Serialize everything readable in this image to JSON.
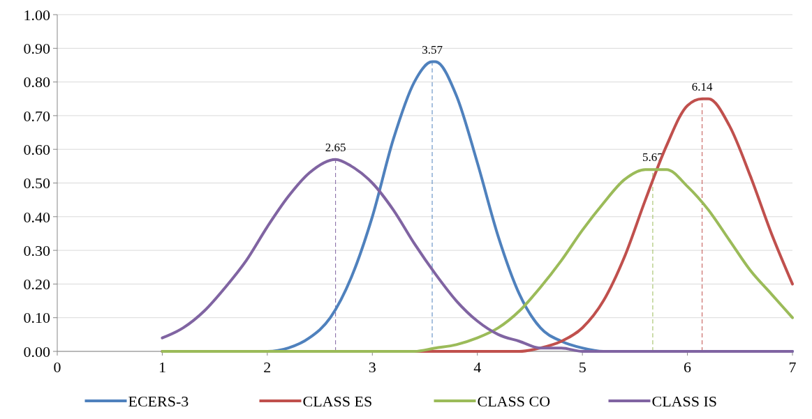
{
  "chart_data": {
    "type": "line",
    "xlim": [
      0,
      7
    ],
    "xticks": [
      0,
      1,
      2,
      3,
      4,
      5,
      6,
      7
    ],
    "ylim": [
      0,
      1
    ],
    "yticks": [
      {
        "value": 0,
        "label": "0.00"
      },
      {
        "value": 0.1,
        "label": "0.10"
      },
      {
        "value": 0.2,
        "label": "0.20"
      },
      {
        "value": 0.3,
        "label": "0.30"
      },
      {
        "value": 0.4,
        "label": "0.40"
      },
      {
        "value": 0.5,
        "label": "0.50"
      },
      {
        "value": 0.6,
        "label": "0.60"
      },
      {
        "value": 0.7,
        "label": "0.70"
      },
      {
        "value": 0.8,
        "label": "0.80"
      },
      {
        "value": 0.9,
        "label": "0.90"
      },
      {
        "value": 1,
        "label": "1.00"
      }
    ],
    "grid": "y",
    "legend": "bottom",
    "marker": "none",
    "line_style": "solid",
    "series": [
      {
        "name": "ECERS-3",
        "color": "#4f81bd",
        "x": [
          1,
          1.8,
          2,
          2.2,
          2.4,
          2.6,
          2.8,
          3,
          3.2,
          3.4,
          3.57,
          3.6,
          3.8,
          4,
          4.2,
          4.4,
          4.6,
          4.8,
          5,
          5.2,
          5.4,
          7
        ],
        "values": [
          0,
          0,
          0,
          0.01,
          0.04,
          0.1,
          0.22,
          0.4,
          0.63,
          0.8,
          0.86,
          0.86,
          0.76,
          0.56,
          0.34,
          0.17,
          0.07,
          0.03,
          0.01,
          0,
          0,
          0
        ]
      },
      {
        "name": "CLASS ES",
        "color": "#c0504d",
        "x": [
          1,
          4,
          4.2,
          4.4,
          4.6,
          4.8,
          5,
          5.2,
          5.4,
          5.6,
          5.8,
          6,
          6.14,
          6.2,
          6.4,
          6.6,
          6.8,
          7
        ],
        "values": [
          0,
          0,
          0,
          0,
          0.01,
          0.03,
          0.07,
          0.15,
          0.28,
          0.45,
          0.61,
          0.73,
          0.75,
          0.75,
          0.67,
          0.52,
          0.35,
          0.2
        ]
      },
      {
        "name": "CLASS CO",
        "color": "#9bbb59",
        "x": [
          1,
          3,
          3.4,
          3.6,
          3.8,
          4,
          4.2,
          4.4,
          4.6,
          4.8,
          5,
          5.2,
          5.4,
          5.6,
          5.67,
          5.8,
          6,
          6.2,
          6.4,
          6.6,
          6.8,
          7
        ],
        "values": [
          0,
          0,
          0,
          0.01,
          0.02,
          0.04,
          0.07,
          0.12,
          0.19,
          0.27,
          0.36,
          0.44,
          0.51,
          0.54,
          0.54,
          0.54,
          0.49,
          0.42,
          0.33,
          0.24,
          0.17,
          0.1
        ]
      },
      {
        "name": "CLASS IS",
        "color": "#8064a2",
        "x": [
          1,
          1.2,
          1.4,
          1.6,
          1.8,
          2,
          2.2,
          2.4,
          2.65,
          2.8,
          3,
          3.2,
          3.4,
          3.6,
          3.8,
          4,
          4.2,
          4.4,
          4.6,
          4.8,
          5,
          5.2,
          7
        ],
        "values": [
          0.04,
          0.07,
          0.12,
          0.19,
          0.27,
          0.37,
          0.46,
          0.53,
          0.57,
          0.55,
          0.5,
          0.42,
          0.32,
          0.23,
          0.15,
          0.09,
          0.05,
          0.03,
          0.01,
          0.01,
          0,
          0,
          0
        ]
      }
    ],
    "ref_lines": [
      {
        "axis": "x",
        "value": 2.65,
        "label": "2.65",
        "color": "#8064a2",
        "line_style": "dashed"
      },
      {
        "axis": "x",
        "value": 3.57,
        "label": "3.57",
        "color": "#4f81bd",
        "line_style": "dashed"
      },
      {
        "axis": "x",
        "value": 5.67,
        "label": "5.67",
        "color": "#9bbb59",
        "line_style": "dashed"
      },
      {
        "axis": "x",
        "value": 6.14,
        "label": "6.14",
        "color": "#c0504d",
        "line_style": "dashed"
      }
    ]
  }
}
